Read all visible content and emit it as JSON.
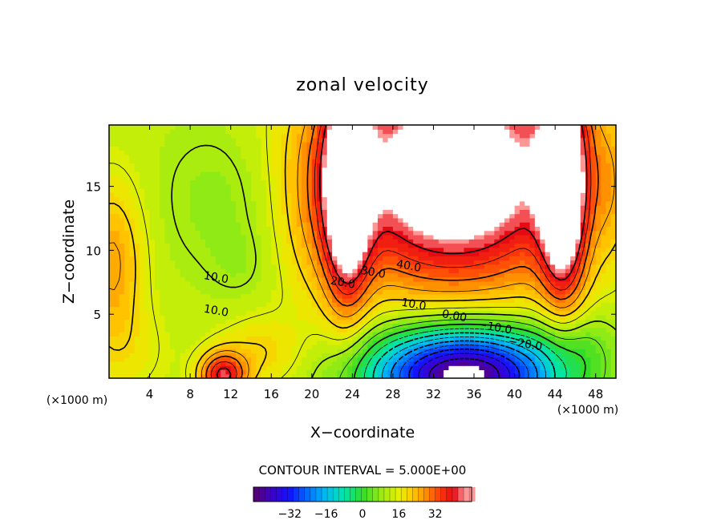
{
  "chart_data": {
    "type": "heatmap",
    "title": "zonal velocity",
    "xlabel": "X−coordinate",
    "ylabel": "Z−coordinate",
    "x_unit_left": "(×1000 m)",
    "x_unit_right": "(×1000 m)",
    "xlim": [
      0,
      50
    ],
    "ylim": [
      0,
      19.8
    ],
    "x_ticks": [
      4,
      8,
      12,
      16,
      20,
      24,
      28,
      32,
      36,
      40,
      44,
      48
    ],
    "y_ticks": [
      5,
      10,
      15
    ],
    "grid": false,
    "contour_interval_text": "CONTOUR INTERVAL = 5.000E+00",
    "colorbar": {
      "ticks": [
        -32,
        -16,
        0,
        16,
        32
      ],
      "range": [
        -48,
        48
      ]
    },
    "contour_labels": [
      {
        "text": "40.0",
        "x": 29.5,
        "z": 8.5
      },
      {
        "text": "30.0",
        "x": 26,
        "z": 8.0
      },
      {
        "text": "20.0",
        "x": 23,
        "z": 7.2
      },
      {
        "text": "10.0",
        "x": 30,
        "z": 5.5
      },
      {
        "text": "0.00",
        "x": 34,
        "z": 4.6
      },
      {
        "text": "−10.0",
        "x": 38,
        "z": 3.7
      },
      {
        "text": "−20.0",
        "x": 41,
        "z": 2.4
      },
      {
        "text": "10.0",
        "x": 10.5,
        "z": 7.6
      },
      {
        "text": "10.0",
        "x": 10.5,
        "z": 5.0
      }
    ],
    "features": [
      {
        "name": "upper jet core (values above 45, blank)",
        "x_range": [
          23.5,
          44.5
        ],
        "z_range": [
          8.5,
          19.8
        ],
        "peak": 48
      },
      {
        "name": "lower negative core (values below −45, blank)",
        "x_range": [
          33,
          39
        ],
        "z_range": [
          0,
          0.9
        ],
        "peak": -47
      },
      {
        "name": "left-edge maximum",
        "x": 0.3,
        "z": 9,
        "peak": 30
      },
      {
        "name": "surface maximum near x=11",
        "x": 11,
        "z": 0.4,
        "peak": 38
      }
    ]
  }
}
